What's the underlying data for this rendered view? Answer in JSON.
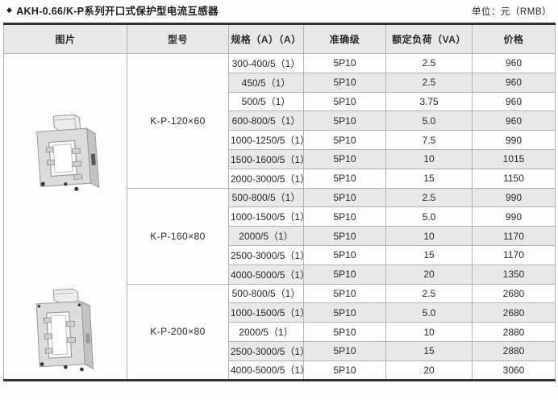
{
  "page": {
    "title_bullet": "◆",
    "title": "AKH-0.66/K-P系列开口式保护型电流互感器",
    "unit_label": "单位：元（RMB）"
  },
  "table": {
    "columns": [
      "图片",
      "型号",
      "规格（A）（A）",
      "准确级",
      "额定负荷（VA）",
      "价格"
    ],
    "images": [
      {
        "name": "ct-product-photo-square",
        "alt": "K-P-120×60 开口式电流互感器照片"
      },
      {
        "name": "ct-product-photo-tall",
        "alt": "K-P-200×80 开口式电流互感器照片"
      }
    ],
    "groups": [
      {
        "model": "K-P-120×60",
        "rows": [
          {
            "spec": "300-400/5（1）",
            "accuracy": "5P10",
            "load": "2.5",
            "price": "960"
          },
          {
            "spec": "450/5（1）",
            "accuracy": "5P10",
            "load": "2.5",
            "price": "960"
          },
          {
            "spec": "500/5（1）",
            "accuracy": "5P10",
            "load": "3.75",
            "price": "960"
          },
          {
            "spec": "600-800/5（1）",
            "accuracy": "5P10",
            "load": "5.0",
            "price": "960"
          },
          {
            "spec": "1000-1250/5（1）",
            "accuracy": "5P10",
            "load": "7.5",
            "price": "990"
          },
          {
            "spec": "1500-1600/5（1）",
            "accuracy": "5P10",
            "load": "10",
            "price": "1015"
          },
          {
            "spec": "2000-3000/5（1）",
            "accuracy": "5P10",
            "load": "15",
            "price": "1150"
          }
        ]
      },
      {
        "model": "K-P-160×80",
        "rows": [
          {
            "spec": "500-800/5（1）",
            "accuracy": "5P10",
            "load": "2.5",
            "price": "990"
          },
          {
            "spec": "1000-1500/5（1）",
            "accuracy": "5P10",
            "load": "5.0",
            "price": "990"
          },
          {
            "spec": "2000/5（1）",
            "accuracy": "5P10",
            "load": "10",
            "price": "1170"
          },
          {
            "spec": "2500-3000/5（1）",
            "accuracy": "5P10",
            "load": "15",
            "price": "1170"
          },
          {
            "spec": "4000-5000/5（1）",
            "accuracy": "5P10",
            "load": "20",
            "price": "1350"
          }
        ]
      },
      {
        "model": "K-P-200×80",
        "rows": [
          {
            "spec": "500-800/5（1）",
            "accuracy": "5P10",
            "load": "2.5",
            "price": "2680"
          },
          {
            "spec": "1000-1500/5（1）",
            "accuracy": "5P10",
            "load": "5.0",
            "price": "2680"
          },
          {
            "spec": "2000/5（1）",
            "accuracy": "5P10",
            "load": "10",
            "price": "2880"
          },
          {
            "spec": "2500-3000/5（1）",
            "accuracy": "5P10",
            "load": "15",
            "price": "2880"
          },
          {
            "spec": "4000-5000/5（1）",
            "accuracy": "5P10",
            "load": "20",
            "price": "3060"
          }
        ]
      }
    ]
  },
  "colors": {
    "stripe_gray": "#e8e8e8",
    "row_white": "#fdfdfd",
    "grid_line": "#b2b2b2",
    "heavy_rule": "#323232",
    "text": "#2a2a2a",
    "product_body_gray": "#d9d9d9"
  }
}
